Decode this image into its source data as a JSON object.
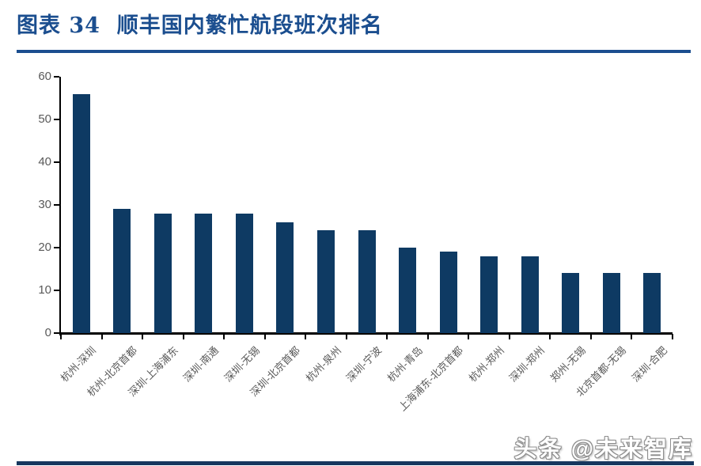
{
  "header": {
    "title": "图表 34  顺丰国内繁忙航段班次排名"
  },
  "chart_data": {
    "type": "bar",
    "title": "顺丰国内繁忙航段班次排名",
    "categories": [
      "杭州-深圳",
      "杭州-北京首都",
      "深圳-上海浦东",
      "深圳-南通",
      "深圳-无锡",
      "深圳-北京首都",
      "杭州-泉州",
      "深圳-宁波",
      "杭州-青岛",
      "上海浦东-北京首都",
      "杭州-郑州",
      "深圳-郑州",
      "郑州-无锡",
      "北京首都-无锡",
      "深圳-合肥"
    ],
    "values": [
      56,
      29,
      28,
      28,
      28,
      26,
      24,
      24,
      20,
      19,
      18,
      18,
      14,
      14,
      14
    ],
    "xlabel": "",
    "ylabel": "",
    "ylim": [
      0,
      60
    ],
    "yticks": [
      0,
      10,
      20,
      30,
      40,
      50,
      60
    ],
    "grid": false,
    "legend": "none",
    "bar_color": "#0e3a63",
    "axis_color": "#000000",
    "tick_label_color": "#595959"
  },
  "footer": {
    "watermark": "头条 @未来智库"
  },
  "colors": {
    "accent_blue": "#1b4e8f",
    "bottom_line": "#17375e"
  }
}
